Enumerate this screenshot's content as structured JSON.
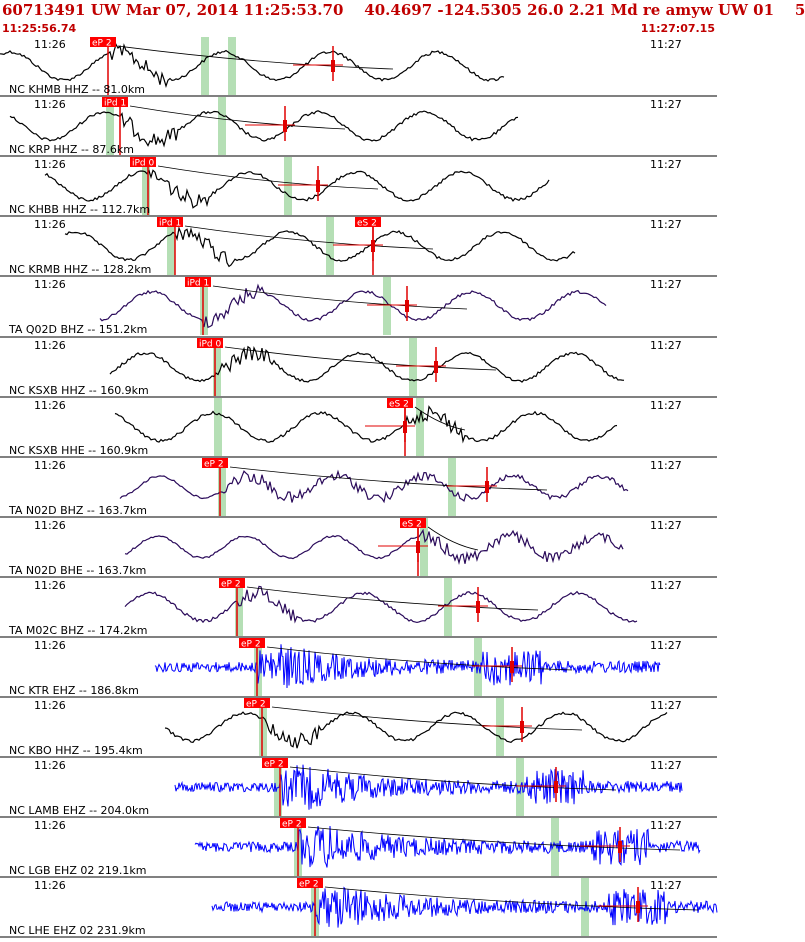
{
  "header": {
    "title": "60713491 UW Mar 07, 2014 11:25:53.70    40.4697 -124.5305 26.0 2.21 Md re amyw UW 01    5",
    "time_start": "11:25:56.74",
    "time_end": "11:27:07.15"
  },
  "colors": {
    "header_red": "#c00000",
    "pick_red": "#e00000",
    "pick_marker_bg": "#ff0000",
    "window_green": "#b5dfb5",
    "trace_black": "#000000",
    "trace_purple": "#2a0a5a",
    "trace_blue": "#0000ff"
  },
  "time_labels": {
    "left": "11:26",
    "right": "11:27"
  },
  "traces": [
    {
      "label": "NC KHMB HHZ -- 81.0km",
      "color": "black",
      "style": "smooth",
      "picks": [
        {
          "text": "eP 2"
        }
      ],
      "windows": 2
    },
    {
      "label": "NC KRP HHZ -- 87.6km",
      "color": "black",
      "style": "smooth",
      "picks": [
        {
          "text": "iPd 1"
        }
      ],
      "windows": 2
    },
    {
      "label": "NC KHBB HHZ -- 112.7km",
      "color": "black",
      "style": "smooth",
      "picks": [
        {
          "text": "iPd 0"
        }
      ],
      "windows": 2
    },
    {
      "label": "NC KRMB HHZ -- 128.2km",
      "color": "black",
      "style": "smooth",
      "picks": [
        {
          "text": "iPd 1"
        },
        {
          "text": "eS 2"
        }
      ],
      "windows": 2
    },
    {
      "label": "TA Q02D BHZ -- 151.2km",
      "color": "purple",
      "style": "smooth",
      "picks": [
        {
          "text": "iPd 1"
        }
      ],
      "windows": 2
    },
    {
      "label": "NC KSXB HHZ -- 160.9km",
      "color": "black",
      "style": "smooth",
      "picks": [
        {
          "text": "iPd 0"
        }
      ],
      "windows": 2
    },
    {
      "label": "NC KSXB HHE -- 160.9km",
      "color": "black",
      "style": "smooth",
      "picks": [
        {
          "text": "eS 2"
        }
      ],
      "windows": 2
    },
    {
      "label": "TA N02D BHZ -- 163.7km",
      "color": "purple",
      "style": "mixed",
      "picks": [
        {
          "text": "eP 2"
        }
      ],
      "windows": 2
    },
    {
      "label": "TA N02D BHE -- 163.7km",
      "color": "purple",
      "style": "mixed",
      "picks": [
        {
          "text": "eS 2"
        }
      ],
      "windows": 1
    },
    {
      "label": "TA M02C BHZ -- 174.2km",
      "color": "purple",
      "style": "smooth",
      "picks": [
        {
          "text": "eP 2"
        }
      ],
      "windows": 2
    },
    {
      "label": "NC KTR EHZ -- 186.8km",
      "color": "blue",
      "style": "noisy",
      "picks": [
        {
          "text": "eP 2"
        }
      ],
      "windows": 2
    },
    {
      "label": "NC KBO HHZ -- 195.4km",
      "color": "black",
      "style": "smooth",
      "picks": [
        {
          "text": "eP 2"
        }
      ],
      "windows": 2
    },
    {
      "label": "NC LAMB EHZ -- 204.0km",
      "color": "blue",
      "style": "noisy",
      "picks": [
        {
          "text": "eP 2"
        }
      ],
      "windows": 2
    },
    {
      "label": "NC LGB EHZ 02 219.1km",
      "color": "blue",
      "style": "noisy",
      "picks": [
        {
          "text": "eP 2"
        }
      ],
      "windows": 2
    },
    {
      "label": "NC LHE EHZ 02 231.9km",
      "color": "blue",
      "style": "noisy",
      "picks": [
        {
          "text": "eP 2"
        }
      ],
      "windows": 2
    }
  ]
}
